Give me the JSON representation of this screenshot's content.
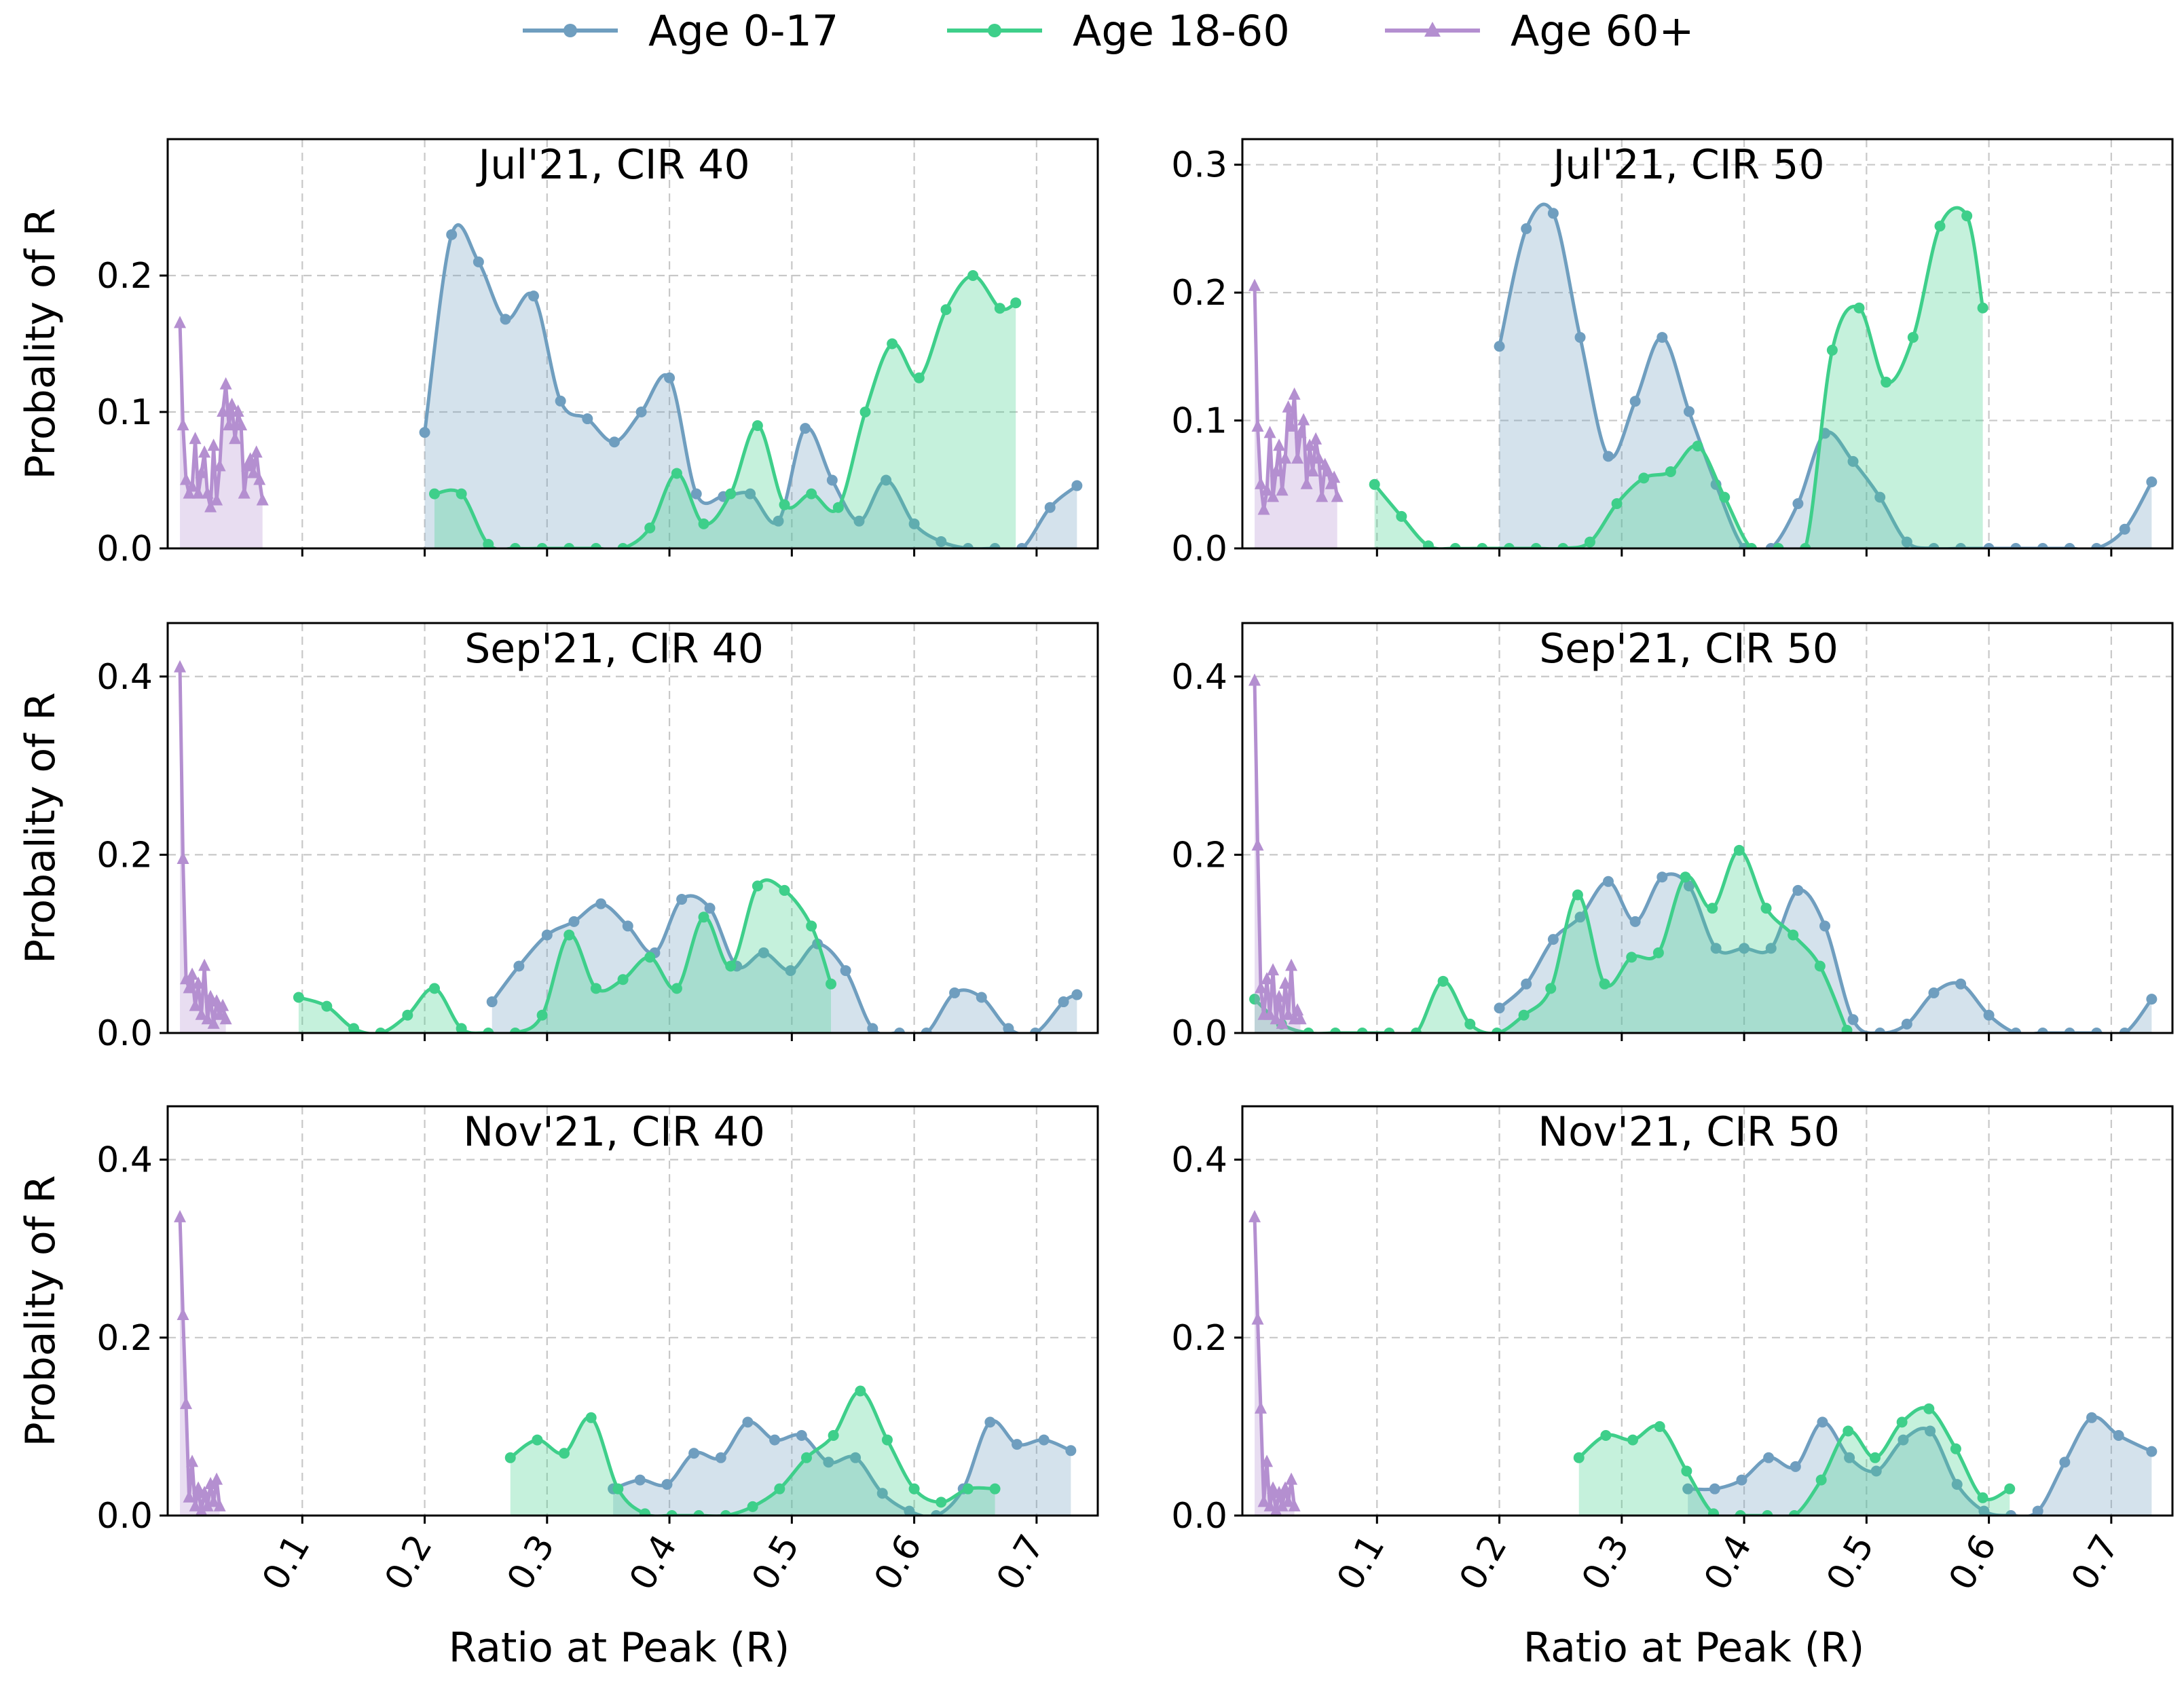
{
  "legend": {
    "items": [
      {
        "label": "Age 0-17",
        "color": "#6f9ebf",
        "marker": "circle"
      },
      {
        "label": "Age 18-60",
        "color": "#3ecf8a",
        "marker": "circle"
      },
      {
        "label": "Age 60+",
        "color": "#b48fd0",
        "marker": "triangle"
      }
    ]
  },
  "chart_data": [
    {
      "type": "area",
      "title": "Jul'21, CIR 40",
      "xlabel": "",
      "ylabel": "Probality of R",
      "xlim": [
        -0.01,
        0.75
      ],
      "ylim": [
        0,
        0.3
      ],
      "xticks": [
        0.1,
        0.2,
        0.3,
        0.4,
        0.5,
        0.6,
        0.7
      ],
      "yticks": [
        0.0,
        0.1,
        0.2
      ],
      "series": [
        {
          "name": "Age 0-17",
          "x": [
            0.2,
            0.222,
            0.244,
            0.266,
            0.289,
            0.311,
            0.333,
            0.355,
            0.377,
            0.4,
            0.422,
            0.444,
            0.466,
            0.489,
            0.511,
            0.533,
            0.555,
            0.577,
            0.6,
            0.622,
            0.644,
            0.666,
            0.688,
            0.711,
            0.733
          ],
          "y": [
            0.085,
            0.23,
            0.21,
            0.168,
            0.185,
            0.108,
            0.095,
            0.078,
            0.1,
            0.125,
            0.04,
            0.038,
            0.04,
            0.02,
            0.088,
            0.05,
            0.02,
            0.05,
            0.018,
            0.005,
            0.0,
            0.0,
            0.0,
            0.03,
            0.046
          ]
        },
        {
          "name": "Age 18-60",
          "x": [
            0.208,
            0.23,
            0.252,
            0.274,
            0.296,
            0.318,
            0.34,
            0.362,
            0.384,
            0.406,
            0.428,
            0.45,
            0.472,
            0.494,
            0.516,
            0.538,
            0.56,
            0.582,
            0.604,
            0.626,
            0.648,
            0.67,
            0.683
          ],
          "y": [
            0.04,
            0.04,
            0.003,
            0.0,
            0.0,
            0.0,
            0.0,
            0.0,
            0.015,
            0.055,
            0.018,
            0.04,
            0.09,
            0.032,
            0.04,
            0.03,
            0.1,
            0.15,
            0.125,
            0.175,
            0.2,
            0.176,
            0.18
          ]
        },
        {
          "name": "Age 60+",
          "x": [
            0.0,
            0.0025,
            0.005,
            0.0075,
            0.01,
            0.0125,
            0.015,
            0.0175,
            0.02,
            0.0225,
            0.025,
            0.0275,
            0.03,
            0.0325,
            0.035,
            0.0375,
            0.04,
            0.0425,
            0.045,
            0.0475,
            0.05,
            0.0525,
            0.055,
            0.0575,
            0.06,
            0.0625,
            0.065,
            0.0675
          ],
          "y": [
            0.165,
            0.09,
            0.05,
            0.04,
            0.045,
            0.08,
            0.04,
            0.055,
            0.07,
            0.04,
            0.03,
            0.075,
            0.035,
            0.06,
            0.1,
            0.12,
            0.09,
            0.105,
            0.08,
            0.1,
            0.09,
            0.04,
            0.06,
            0.065,
            0.055,
            0.07,
            0.05,
            0.035
          ]
        }
      ]
    },
    {
      "type": "area",
      "title": "Jul'21, CIR 50",
      "xlabel": "",
      "ylabel": "",
      "xlim": [
        -0.01,
        0.75
      ],
      "ylim": [
        0,
        0.32
      ],
      "xticks": [
        0.1,
        0.2,
        0.3,
        0.4,
        0.5,
        0.6,
        0.7
      ],
      "yticks": [
        0.0,
        0.1,
        0.2,
        0.3
      ],
      "series": [
        {
          "name": "Age 0-17",
          "x": [
            0.2,
            0.222,
            0.244,
            0.266,
            0.289,
            0.311,
            0.333,
            0.355,
            0.377,
            0.4,
            0.422,
            0.444,
            0.466,
            0.489,
            0.511,
            0.533,
            0.555,
            0.577,
            0.6,
            0.622,
            0.644,
            0.666,
            0.688,
            0.711,
            0.733
          ],
          "y": [
            0.158,
            0.25,
            0.262,
            0.165,
            0.072,
            0.115,
            0.165,
            0.107,
            0.05,
            0.0,
            0.0,
            0.035,
            0.09,
            0.068,
            0.04,
            0.005,
            0.0,
            0.0,
            0.0,
            0.0,
            0.0,
            0.0,
            0.0,
            0.015,
            0.052
          ]
        },
        {
          "name": "Age 18-60",
          "x": [
            0.098,
            0.12,
            0.142,
            0.164,
            0.186,
            0.208,
            0.23,
            0.252,
            0.274,
            0.296,
            0.318,
            0.34,
            0.362,
            0.384,
            0.406,
            0.428,
            0.45,
            0.472,
            0.494,
            0.516,
            0.538,
            0.56,
            0.582,
            0.595
          ],
          "y": [
            0.05,
            0.025,
            0.002,
            0.0,
            0.0,
            0.0,
            0.0,
            0.0,
            0.005,
            0.035,
            0.055,
            0.06,
            0.08,
            0.04,
            0.0,
            0.0,
            0.0,
            0.155,
            0.188,
            0.13,
            0.165,
            0.252,
            0.26,
            0.188
          ]
        },
        {
          "name": "Age 60+",
          "x": [
            0.0,
            0.0025,
            0.005,
            0.0075,
            0.01,
            0.0125,
            0.015,
            0.0175,
            0.02,
            0.0225,
            0.025,
            0.0275,
            0.03,
            0.0325,
            0.035,
            0.0375,
            0.04,
            0.0425,
            0.045,
            0.0475,
            0.05,
            0.0525,
            0.055,
            0.0575,
            0.06,
            0.0625,
            0.065,
            0.0675
          ],
          "y": [
            0.205,
            0.095,
            0.05,
            0.03,
            0.045,
            0.09,
            0.04,
            0.06,
            0.08,
            0.045,
            0.07,
            0.11,
            0.095,
            0.12,
            0.07,
            0.09,
            0.1,
            0.05,
            0.08,
            0.06,
            0.085,
            0.07,
            0.04,
            0.065,
            0.06,
            0.05,
            0.055,
            0.04
          ]
        }
      ]
    },
    {
      "type": "area",
      "title": "Sep'21, CIR 40",
      "xlabel": "",
      "ylabel": "Probality of R",
      "xlim": [
        -0.01,
        0.75
      ],
      "ylim": [
        0,
        0.46
      ],
      "xticks": [
        0.1,
        0.2,
        0.3,
        0.4,
        0.5,
        0.6,
        0.7
      ],
      "yticks": [
        0.0,
        0.2,
        0.4
      ],
      "series": [
        {
          "name": "Age 0-17",
          "x": [
            0.255,
            0.277,
            0.3,
            0.322,
            0.344,
            0.366,
            0.388,
            0.41,
            0.433,
            0.455,
            0.477,
            0.499,
            0.521,
            0.544,
            0.566,
            0.588,
            0.61,
            0.633,
            0.655,
            0.677,
            0.699,
            0.722,
            0.733
          ],
          "y": [
            0.035,
            0.075,
            0.11,
            0.125,
            0.145,
            0.12,
            0.09,
            0.15,
            0.14,
            0.075,
            0.09,
            0.07,
            0.1,
            0.07,
            0.005,
            0.0,
            0.0,
            0.045,
            0.04,
            0.005,
            0.0,
            0.035,
            0.043
          ]
        },
        {
          "name": "Age 18-60",
          "x": [
            0.097,
            0.12,
            0.142,
            0.164,
            0.186,
            0.208,
            0.23,
            0.252,
            0.274,
            0.296,
            0.318,
            0.34,
            0.362,
            0.384,
            0.406,
            0.428,
            0.45,
            0.472,
            0.494,
            0.516,
            0.532
          ],
          "y": [
            0.04,
            0.03,
            0.005,
            0.0,
            0.02,
            0.05,
            0.005,
            0.0,
            0.0,
            0.02,
            0.11,
            0.05,
            0.06,
            0.085,
            0.05,
            0.13,
            0.075,
            0.165,
            0.16,
            0.12,
            0.055
          ]
        },
        {
          "name": "Age 60+",
          "x": [
            0.0,
            0.0025,
            0.005,
            0.0075,
            0.01,
            0.0125,
            0.015,
            0.0175,
            0.02,
            0.0225,
            0.025,
            0.0275,
            0.03,
            0.0325,
            0.035,
            0.0375
          ],
          "y": [
            0.41,
            0.195,
            0.06,
            0.05,
            0.065,
            0.03,
            0.055,
            0.02,
            0.075,
            0.015,
            0.04,
            0.01,
            0.035,
            0.02,
            0.03,
            0.015
          ]
        }
      ]
    },
    {
      "type": "area",
      "title": "Sep'21, CIR 50",
      "xlabel": "",
      "ylabel": "",
      "xlim": [
        -0.01,
        0.75
      ],
      "ylim": [
        0,
        0.46
      ],
      "xticks": [
        0.1,
        0.2,
        0.3,
        0.4,
        0.5,
        0.6,
        0.7
      ],
      "yticks": [
        0.0,
        0.2,
        0.4
      ],
      "series": [
        {
          "name": "Age 0-17",
          "x": [
            0.2,
            0.222,
            0.244,
            0.266,
            0.289,
            0.311,
            0.333,
            0.355,
            0.377,
            0.4,
            0.422,
            0.444,
            0.466,
            0.489,
            0.511,
            0.533,
            0.555,
            0.577,
            0.6,
            0.622,
            0.644,
            0.666,
            0.688,
            0.711,
            0.733
          ],
          "y": [
            0.028,
            0.055,
            0.105,
            0.13,
            0.17,
            0.125,
            0.175,
            0.165,
            0.095,
            0.095,
            0.095,
            0.16,
            0.12,
            0.015,
            0.0,
            0.01,
            0.045,
            0.055,
            0.02,
            0.0,
            0.0,
            0.0,
            0.0,
            0.0,
            0.038
          ]
        },
        {
          "name": "Age 18-60",
          "x": [
            0.0,
            0.022,
            0.044,
            0.066,
            0.088,
            0.11,
            0.132,
            0.154,
            0.176,
            0.198,
            0.22,
            0.242,
            0.264,
            0.286,
            0.308,
            0.33,
            0.352,
            0.374,
            0.396,
            0.418,
            0.44,
            0.462,
            0.484
          ],
          "y": [
            0.038,
            0.01,
            0.0,
            0.0,
            0.0,
            0.0,
            0.0,
            0.058,
            0.01,
            0.0,
            0.02,
            0.05,
            0.155,
            0.055,
            0.085,
            0.09,
            0.175,
            0.14,
            0.205,
            0.14,
            0.11,
            0.075,
            0.003
          ]
        },
        {
          "name": "Age 60+",
          "x": [
            0.0,
            0.0025,
            0.005,
            0.0075,
            0.01,
            0.0125,
            0.015,
            0.0175,
            0.02,
            0.0225,
            0.025,
            0.0275,
            0.03,
            0.0325,
            0.035,
            0.0375
          ],
          "y": [
            0.395,
            0.21,
            0.05,
            0.02,
            0.06,
            0.02,
            0.07,
            0.015,
            0.04,
            0.01,
            0.055,
            0.02,
            0.075,
            0.015,
            0.025,
            0.015
          ]
        }
      ]
    },
    {
      "type": "area",
      "title": "Nov'21, CIR 40",
      "xlabel": "Ratio at Peak (R)",
      "ylabel": "Probality of R",
      "xlim": [
        -0.01,
        0.75
      ],
      "ylim": [
        0,
        0.46
      ],
      "xticks": [
        0.1,
        0.2,
        0.3,
        0.4,
        0.5,
        0.6,
        0.7
      ],
      "yticks": [
        0.0,
        0.2,
        0.4
      ],
      "series": [
        {
          "name": "Age 0-17",
          "x": [
            0.354,
            0.376,
            0.398,
            0.42,
            0.442,
            0.464,
            0.486,
            0.508,
            0.53,
            0.552,
            0.574,
            0.596,
            0.618,
            0.64,
            0.662,
            0.684,
            0.706,
            0.728
          ],
          "y": [
            0.03,
            0.04,
            0.035,
            0.07,
            0.065,
            0.105,
            0.085,
            0.09,
            0.06,
            0.065,
            0.025,
            0.005,
            0.0,
            0.03,
            0.105,
            0.08,
            0.085,
            0.073
          ]
        },
        {
          "name": "Age 18-60",
          "x": [
            0.27,
            0.292,
            0.314,
            0.336,
            0.358,
            0.38,
            0.402,
            0.424,
            0.446,
            0.468,
            0.49,
            0.512,
            0.534,
            0.556,
            0.578,
            0.6,
            0.622,
            0.644,
            0.666
          ],
          "y": [
            0.065,
            0.085,
            0.07,
            0.11,
            0.03,
            0.002,
            0.0,
            0.0,
            0.0,
            0.01,
            0.03,
            0.065,
            0.09,
            0.14,
            0.085,
            0.03,
            0.015,
            0.03,
            0.03
          ]
        },
        {
          "name": "Age 60+",
          "x": [
            0.0,
            0.0025,
            0.005,
            0.0075,
            0.01,
            0.0125,
            0.015,
            0.0175,
            0.02,
            0.0225,
            0.025,
            0.0275,
            0.03,
            0.0325
          ],
          "y": [
            0.335,
            0.225,
            0.125,
            0.02,
            0.06,
            0.01,
            0.03,
            0.005,
            0.025,
            0.01,
            0.035,
            0.015,
            0.04,
            0.01
          ]
        }
      ]
    },
    {
      "type": "area",
      "title": "Nov'21, CIR 50",
      "xlabel": "Ratio at Peak (R)",
      "ylabel": "",
      "xlim": [
        -0.01,
        0.75
      ],
      "ylim": [
        0,
        0.46
      ],
      "xticks": [
        0.1,
        0.2,
        0.3,
        0.4,
        0.5,
        0.6,
        0.7
      ],
      "yticks": [
        0.0,
        0.2,
        0.4
      ],
      "series": [
        {
          "name": "Age 0-17",
          "x": [
            0.354,
            0.376,
            0.398,
            0.42,
            0.442,
            0.464,
            0.486,
            0.508,
            0.53,
            0.552,
            0.574,
            0.596,
            0.618,
            0.64,
            0.662,
            0.684,
            0.706,
            0.733
          ],
          "y": [
            0.03,
            0.03,
            0.04,
            0.065,
            0.055,
            0.105,
            0.065,
            0.05,
            0.085,
            0.095,
            0.035,
            0.005,
            0.0,
            0.005,
            0.06,
            0.11,
            0.09,
            0.072
          ]
        },
        {
          "name": "Age 18-60",
          "x": [
            0.265,
            0.287,
            0.309,
            0.331,
            0.353,
            0.375,
            0.397,
            0.419,
            0.441,
            0.463,
            0.485,
            0.507,
            0.529,
            0.551,
            0.573,
            0.595,
            0.617
          ],
          "y": [
            0.065,
            0.09,
            0.085,
            0.1,
            0.05,
            0.002,
            0.0,
            0.0,
            0.0,
            0.04,
            0.095,
            0.065,
            0.105,
            0.12,
            0.075,
            0.02,
            0.03
          ]
        },
        {
          "name": "Age 60+",
          "x": [
            0.0,
            0.0025,
            0.005,
            0.0075,
            0.01,
            0.0125,
            0.015,
            0.0175,
            0.02,
            0.0225,
            0.025,
            0.0275,
            0.03,
            0.0325
          ],
          "y": [
            0.335,
            0.22,
            0.12,
            0.015,
            0.06,
            0.01,
            0.03,
            0.005,
            0.025,
            0.01,
            0.03,
            0.015,
            0.04,
            0.01
          ]
        }
      ]
    }
  ]
}
